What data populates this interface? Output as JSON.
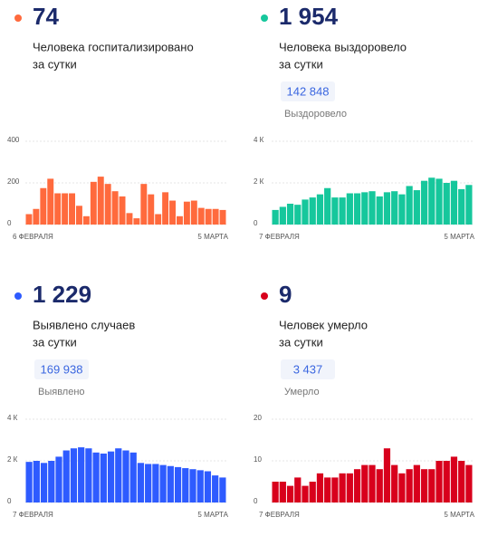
{
  "chart_data": [
    {
      "type": "bar",
      "headline": "74",
      "description": [
        "Человека госпитализировано",
        "за сутки"
      ],
      "color": "#ff6a3d",
      "categories": [
        "6 ФЕВРАЛЯ",
        null,
        null,
        null,
        null,
        null,
        null,
        null,
        null,
        null,
        null,
        null,
        null,
        null,
        null,
        null,
        null,
        null,
        null,
        null,
        null,
        null,
        null,
        null,
        null,
        null,
        null,
        "5 МАРТА"
      ],
      "values": [
        50,
        75,
        175,
        220,
        150,
        150,
        150,
        90,
        40,
        205,
        230,
        195,
        160,
        135,
        55,
        30,
        195,
        145,
        50,
        155,
        115,
        40,
        110,
        115,
        80,
        75,
        75,
        70
      ],
      "ylim": [
        0,
        400
      ],
      "yticks": [
        0,
        200,
        400
      ],
      "grid": true
    },
    {
      "type": "bar",
      "headline": "1 954",
      "description": [
        "Человека выздоровело",
        "за сутки"
      ],
      "total": "142 848",
      "total_label": "Выздоровело",
      "color": "#16c79c",
      "categories": [
        "7 ФЕВРАЛЯ",
        null,
        null,
        null,
        null,
        null,
        null,
        null,
        null,
        null,
        null,
        null,
        null,
        null,
        null,
        null,
        null,
        null,
        null,
        null,
        null,
        null,
        null,
        null,
        null,
        null,
        "5 МАРТА"
      ],
      "values": [
        700,
        850,
        1000,
        950,
        1200,
        1300,
        1450,
        1750,
        1300,
        1300,
        1500,
        1500,
        1550,
        1600,
        1350,
        1550,
        1600,
        1450,
        1850,
        1650,
        2100,
        2250,
        2200,
        2000,
        2100,
        1700,
        1900
      ],
      "ylim": [
        0,
        4000
      ],
      "yticks": [
        0,
        {
          "value": 2000,
          "label": "2 К"
        },
        {
          "value": 4000,
          "label": "4 К"
        }
      ],
      "grid": true
    },
    {
      "type": "bar",
      "headline": "1 229",
      "description": [
        "Выявлено случаев",
        "за сутки"
      ],
      "total": "169 938",
      "total_label": "Выявлено",
      "color": "#2e5bff",
      "categories": [
        "7 ФЕВРАЛЯ",
        null,
        null,
        null,
        null,
        null,
        null,
        null,
        null,
        null,
        null,
        null,
        null,
        null,
        null,
        null,
        null,
        null,
        null,
        null,
        null,
        null,
        null,
        null,
        null,
        null,
        "5 МАРТА"
      ],
      "values": [
        1950,
        2000,
        1900,
        2000,
        2200,
        2500,
        2600,
        2650,
        2600,
        2400,
        2350,
        2450,
        2600,
        2500,
        2400,
        1900,
        1850,
        1850,
        1800,
        1750,
        1700,
        1650,
        1600,
        1550,
        1500,
        1300,
        1200
      ],
      "ylim": [
        0,
        4000
      ],
      "yticks": [
        0,
        {
          "value": 2000,
          "label": "2 К"
        },
        {
          "value": 4000,
          "label": "4 К"
        }
      ],
      "grid": true
    },
    {
      "type": "bar",
      "headline": "9",
      "description": [
        "Человек умерло",
        "за сутки"
      ],
      "total": "3 437",
      "total_label": "Умерло",
      "color": "#d8001c",
      "categories": [
        "7 ФЕВРАЛЯ",
        null,
        null,
        null,
        null,
        null,
        null,
        null,
        null,
        null,
        null,
        null,
        null,
        null,
        null,
        null,
        null,
        null,
        null,
        null,
        null,
        null,
        null,
        null,
        null,
        null,
        "5 МАРТА"
      ],
      "values": [
        5,
        5,
        4,
        6,
        4,
        5,
        7,
        6,
        6,
        7,
        7,
        8,
        9,
        9,
        8,
        13,
        9,
        7,
        8,
        9,
        8,
        8,
        10,
        10,
        11,
        10,
        9
      ],
      "ylim": [
        0,
        20
      ],
      "yticks": [
        0,
        10,
        20
      ],
      "grid": true
    }
  ]
}
